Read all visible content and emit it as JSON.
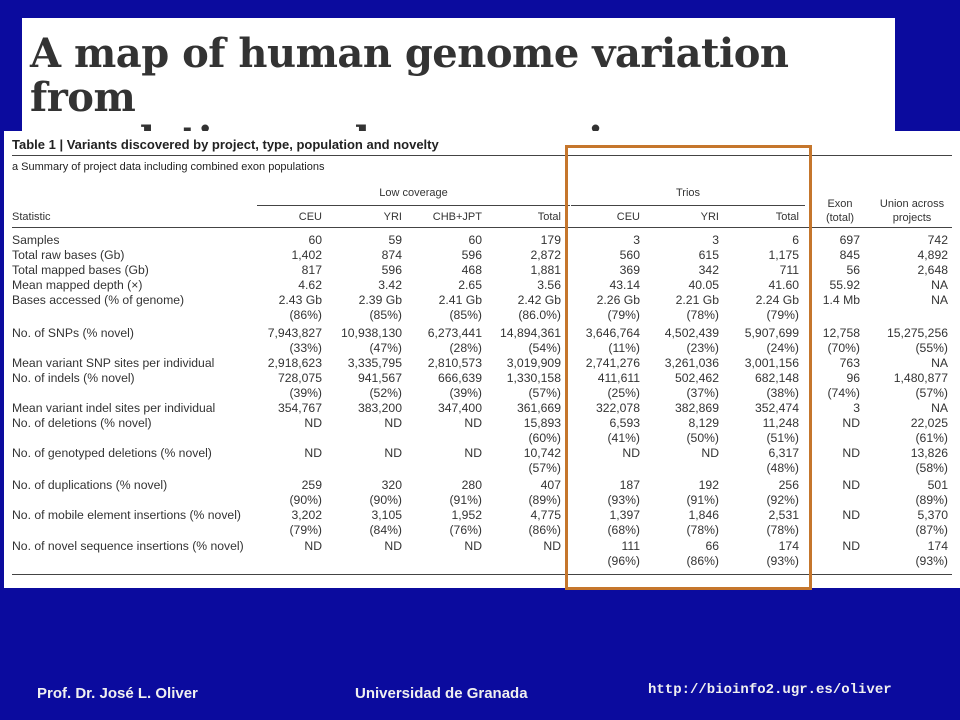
{
  "slide_title_line1": "A map of human genome variation from",
  "slide_title_line2": "population-scale sequencing",
  "table": {
    "title": "Table 1 | Variants discovered by project, type, population and novelty",
    "subtitle": "a Summary of project data including combined exon populations",
    "group_low": "Low coverage",
    "group_trios": "Trios",
    "col_statistic": "Statistic",
    "col_exon_line1": "Exon",
    "col_exon_line2": "(total)",
    "col_union_line1": "Union across",
    "col_union_line2": "projects",
    "columns": [
      "CEU",
      "YRI",
      "CHB+JPT",
      "Total",
      "CEU",
      "YRI",
      "Total"
    ],
    "rows": [
      {
        "label": "Samples",
        "values": [
          "60",
          "59",
          "60",
          "179",
          "3",
          "3",
          "6",
          "697",
          "742"
        ],
        "sub": []
      },
      {
        "label": "Total raw bases (Gb)",
        "values": [
          "1,402",
          "874",
          "596",
          "2,872",
          "560",
          "615",
          "1,175",
          "845",
          "4,892"
        ],
        "sub": []
      },
      {
        "label": "Total mapped bases (Gb)",
        "values": [
          "817",
          "596",
          "468",
          "1,881",
          "369",
          "342",
          "711",
          "56",
          "2,648"
        ],
        "sub": []
      },
      {
        "label": "Mean mapped depth (×)",
        "values": [
          "4.62",
          "3.42",
          "2.65",
          "3.56",
          "43.14",
          "40.05",
          "41.60",
          "55.92",
          "NA"
        ],
        "sub": []
      },
      {
        "label": "Bases accessed (% of genome)",
        "values": [
          "2.43 Gb",
          "2.39 Gb",
          "2.41 Gb",
          "2.42 Gb",
          "2.26 Gb",
          "2.21 Gb",
          "2.24 Gb",
          "1.4 Mb",
          "NA"
        ],
        "sub": [
          "(86%)",
          "(85%)",
          "(85%)",
          "(86.0%)",
          "(79%)",
          "(78%)",
          "(79%)",
          "",
          ""
        ]
      },
      {
        "label": "No. of SNPs (% novel)",
        "values": [
          "7,943,827",
          "10,938,130",
          "6,273,441",
          "14,894,361",
          "3,646,764",
          "4,502,439",
          "5,907,699",
          "12,758",
          "15,275,256"
        ],
        "sub": [
          "(33%)",
          "(47%)",
          "(28%)",
          "(54%)",
          "(11%)",
          "(23%)",
          "(24%)",
          "(70%)",
          "(55%)"
        ]
      },
      {
        "label": "Mean variant SNP sites per individual",
        "values": [
          "2,918,623",
          "3,335,795",
          "2,810,573",
          "3,019,909",
          "2,741,276",
          "3,261,036",
          "3,001,156",
          "763",
          "NA"
        ],
        "sub": []
      },
      {
        "label": "No. of indels (% novel)",
        "values": [
          "728,075",
          "941,567",
          "666,639",
          "1,330,158",
          "411,611",
          "502,462",
          "682,148",
          "96",
          "1,480,877"
        ],
        "sub": [
          "(39%)",
          "(52%)",
          "(39%)",
          "(57%)",
          "(25%)",
          "(37%)",
          "(38%)",
          "(74%)",
          "(57%)"
        ]
      },
      {
        "label": "Mean variant indel sites per individual",
        "values": [
          "354,767",
          "383,200",
          "347,400",
          "361,669",
          "322,078",
          "382,869",
          "352,474",
          "3",
          "NA"
        ],
        "sub": []
      },
      {
        "label": "No. of deletions (% novel)",
        "values": [
          "ND",
          "ND",
          "ND",
          "15,893",
          "6,593",
          "8,129",
          "11,248",
          "ND",
          "22,025"
        ],
        "sub": [
          "",
          "",
          "",
          "(60%)",
          "(41%)",
          "(50%)",
          "(51%)",
          "",
          "(61%)"
        ]
      },
      {
        "label": "No. of genotyped deletions (% novel)",
        "values": [
          "ND",
          "ND",
          "ND",
          "10,742",
          "ND",
          "ND",
          "6,317",
          "ND",
          "13,826"
        ],
        "sub": [
          "",
          "",
          "",
          "(57%)",
          "",
          "",
          "(48%)",
          "",
          "(58%)"
        ]
      },
      {
        "label": "No. of duplications (% novel)",
        "values": [
          "259",
          "320",
          "280",
          "407",
          "187",
          "192",
          "256",
          "ND",
          "501"
        ],
        "sub": [
          "(90%)",
          "(90%)",
          "(91%)",
          "(89%)",
          "(93%)",
          "(91%)",
          "(92%)",
          "",
          "(89%)"
        ]
      },
      {
        "label": "No. of mobile element insertions (% novel)",
        "values": [
          "3,202",
          "3,105",
          "1,952",
          "4,775",
          "1,397",
          "1,846",
          "2,531",
          "ND",
          "5,370"
        ],
        "sub": [
          "(79%)",
          "(84%)",
          "(76%)",
          "(86%)",
          "(68%)",
          "(78%)",
          "(78%)",
          "",
          "(87%)"
        ]
      },
      {
        "label": "No. of novel sequence insertions (% novel)",
        "values": [
          "ND",
          "ND",
          "ND",
          "ND",
          "111",
          "66",
          "174",
          "ND",
          "174"
        ],
        "sub": [
          "",
          "",
          "",
          "",
          "(96%)",
          "(86%)",
          "(93%)",
          "",
          "(93%)"
        ]
      }
    ]
  },
  "footer": {
    "author": "Prof. Dr. José L. Oliver",
    "university": "Universidad de Granada",
    "url": "http://bioinfo2.ugr.es/oliver"
  }
}
